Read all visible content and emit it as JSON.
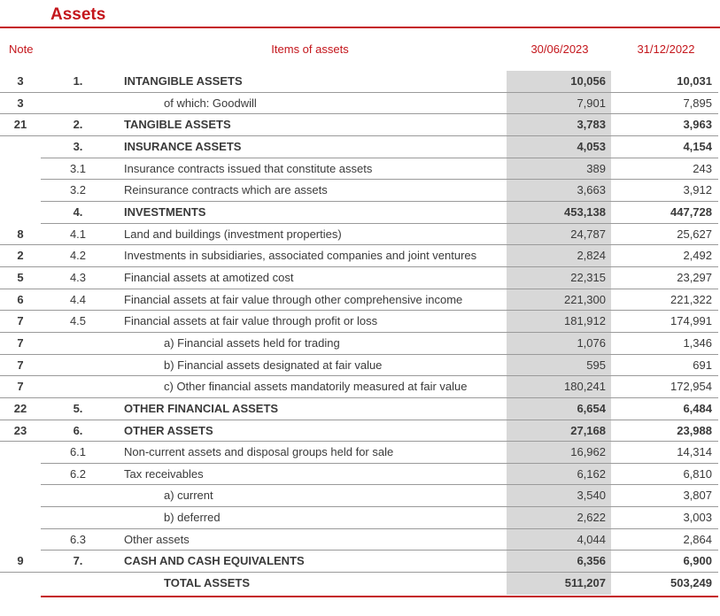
{
  "title": "Assets",
  "headers": {
    "note": "Note",
    "items": "Items of assets",
    "col1": "30/06/2023",
    "col2": "31/12/2022"
  },
  "rows": [
    {
      "note": "3",
      "num": "1.",
      "label": "INTANGIBLE ASSETS",
      "v1": "10,056",
      "v2": "10,031",
      "bold": true,
      "indent": 0
    },
    {
      "note": "3",
      "num": "",
      "label": "of which: Goodwill",
      "v1": "7,901",
      "v2": "7,895",
      "bold": false,
      "indent": 2
    },
    {
      "note": "21",
      "num": "2.",
      "label": "TANGIBLE ASSETS",
      "v1": "3,783",
      "v2": "3,963",
      "bold": true,
      "indent": 0
    },
    {
      "note": "",
      "num": "3.",
      "label": "INSURANCE ASSETS",
      "v1": "4,053",
      "v2": "4,154",
      "bold": true,
      "indent": 0
    },
    {
      "note": "",
      "num": "3.1",
      "label": "Insurance contracts issued that constitute assets",
      "v1": "389",
      "v2": "243",
      "bold": false,
      "indent": 0
    },
    {
      "note": "",
      "num": "3.2",
      "label": "Reinsurance contracts which are assets",
      "v1": "3,663",
      "v2": "3,912",
      "bold": false,
      "indent": 0
    },
    {
      "note": "",
      "num": "4.",
      "label": "INVESTMENTS",
      "v1": "453,138",
      "v2": "447,728",
      "bold": true,
      "indent": 0
    },
    {
      "note": "8",
      "num": "4.1",
      "label": "Land and buildings (investment properties)",
      "v1": "24,787",
      "v2": "25,627",
      "bold": false,
      "indent": 0
    },
    {
      "note": "2",
      "num": "4.2",
      "label": "Investments in subsidiaries, associated companies and joint ventures",
      "v1": "2,824",
      "v2": "2,492",
      "bold": false,
      "indent": 0
    },
    {
      "note": "5",
      "num": "4.3",
      "label": "Financial assets at amotized cost",
      "v1": "22,315",
      "v2": "23,297",
      "bold": false,
      "indent": 0
    },
    {
      "note": "6",
      "num": "4.4",
      "label": "Financial assets at fair value through other comprehensive income",
      "v1": "221,300",
      "v2": "221,322",
      "bold": false,
      "indent": 0
    },
    {
      "note": "7",
      "num": "4.5",
      "label": "Financial assets at fair value through profit or loss",
      "v1": "181,912",
      "v2": "174,991",
      "bold": false,
      "indent": 0
    },
    {
      "note": "7",
      "num": "",
      "label": "a) Financial assets held for trading",
      "v1": "1,076",
      "v2": "1,346",
      "bold": false,
      "indent": 1
    },
    {
      "note": "7",
      "num": "",
      "label": "b) Financial assets designated at fair value",
      "v1": "595",
      "v2": "691",
      "bold": false,
      "indent": 1
    },
    {
      "note": "7",
      "num": "",
      "label": "c) Other financial assets mandatorily measured at fair value",
      "v1": "180,241",
      "v2": "172,954",
      "bold": false,
      "indent": 1
    },
    {
      "note": "22",
      "num": "5.",
      "label": "OTHER FINANCIAL ASSETS",
      "v1": "6,654",
      "v2": "6,484",
      "bold": true,
      "indent": 0
    },
    {
      "note": "23",
      "num": "6.",
      "label": "OTHER ASSETS",
      "v1": "27,168",
      "v2": "23,988",
      "bold": true,
      "indent": 0
    },
    {
      "note": "",
      "num": "6.1",
      "label": "Non-current assets and disposal groups held for sale",
      "v1": "16,962",
      "v2": "14,314",
      "bold": false,
      "indent": 0
    },
    {
      "note": "",
      "num": "6.2",
      "label": "Tax receivables",
      "v1": "6,162",
      "v2": "6,810",
      "bold": false,
      "indent": 0
    },
    {
      "note": "",
      "num": "",
      "label": "a) current",
      "v1": "3,540",
      "v2": "3,807",
      "bold": false,
      "indent": 1
    },
    {
      "note": "",
      "num": "",
      "label": "b) deferred",
      "v1": "2,622",
      "v2": "3,003",
      "bold": false,
      "indent": 1
    },
    {
      "note": "",
      "num": "6.3",
      "label": "Other assets",
      "v1": "4,044",
      "v2": "2,864",
      "bold": false,
      "indent": 0
    },
    {
      "note": "9",
      "num": "7.",
      "label": "CASH AND CASH EQUIVALENTS",
      "v1": "6,356",
      "v2": "6,900",
      "bold": true,
      "indent": 0
    },
    {
      "note": "",
      "num": "",
      "label": "TOTAL ASSETS",
      "v1": "511,207",
      "v2": "503,249",
      "bold": true,
      "indent": 1
    }
  ]
}
